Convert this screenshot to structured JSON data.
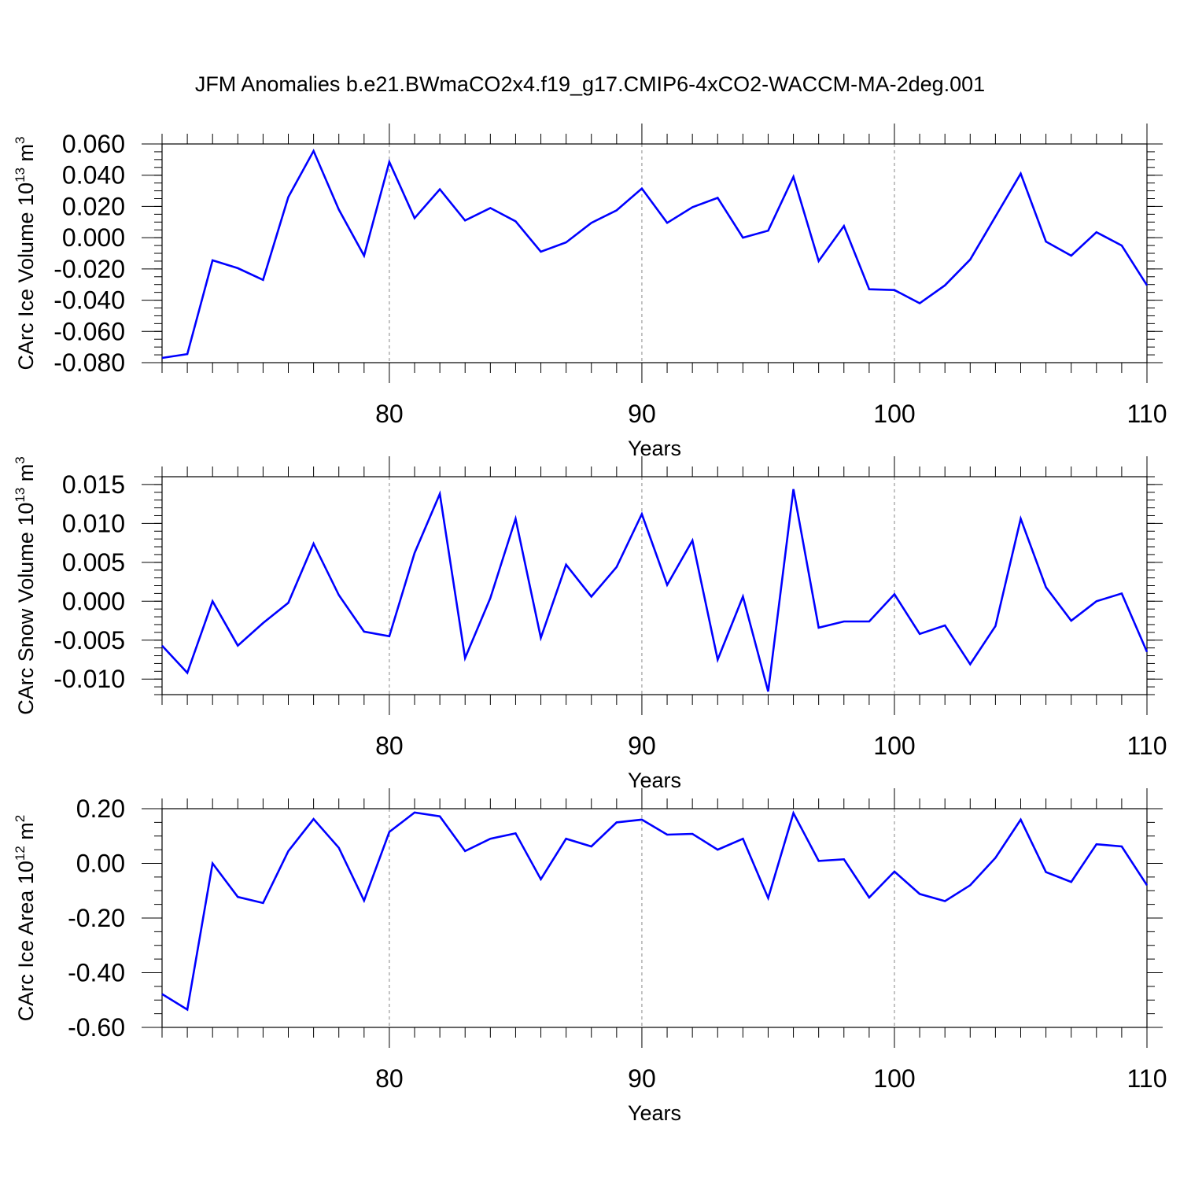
{
  "title": "JFM Anomalies b.e21.BWmaCO2x4.f19_g17.CMIP6-4xCO2-WACCM-MA-2deg.001",
  "colors": {
    "series": "#0000ff",
    "axes": "#000000",
    "grid": "#888888"
  },
  "chart_data": [
    {
      "type": "line",
      "ylabel": "CArc Ice Volume 10",
      "ylabel_exp": "13",
      "ylabel_unit": " m",
      "ylabel_unit_exp": "3",
      "xlabel": "Years",
      "xlim": [
        71,
        110
      ],
      "ylim": [
        -0.08,
        0.06
      ],
      "xticks": [
        80,
        90,
        100,
        110
      ],
      "xtick_labels": [
        "80",
        "90",
        "100",
        "110"
      ],
      "yticks": [
        0.06,
        0.04,
        0.02,
        0.0,
        -0.02,
        -0.04,
        -0.06,
        -0.08
      ],
      "ytick_labels": [
        "0.060",
        "0.040",
        "0.020",
        "0.000",
        "-0.020",
        "-0.040",
        "-0.060",
        "-0.080"
      ],
      "y_minor_step": 0.005,
      "grid": "vertical dashed at major x ticks",
      "x": [
        71,
        72,
        73,
        74,
        75,
        76,
        77,
        78,
        79,
        80,
        81,
        82,
        83,
        84,
        85,
        86,
        87,
        88,
        89,
        90,
        91,
        92,
        93,
        94,
        95,
        96,
        97,
        98,
        99,
        100,
        101,
        102,
        103,
        104,
        105,
        106,
        107,
        108,
        109,
        110
      ],
      "values": [
        -0.077,
        -0.0745,
        -0.0145,
        -0.0195,
        -0.027,
        0.026,
        0.0555,
        0.018,
        -0.0115,
        0.0485,
        0.0125,
        0.031,
        0.011,
        0.019,
        0.0105,
        -0.009,
        -0.003,
        0.0095,
        0.0175,
        0.0315,
        0.0095,
        0.0195,
        0.0255,
        0.0,
        0.0045,
        0.039,
        -0.015,
        0.0075,
        -0.033,
        -0.0335,
        -0.042,
        -0.0305,
        -0.014,
        0.0135,
        0.041,
        -0.0025,
        -0.0115,
        0.0035,
        -0.005,
        -0.0305
      ]
    },
    {
      "type": "line",
      "ylabel": "CArc Snow Volume 10",
      "ylabel_exp": "13",
      "ylabel_unit": " m",
      "ylabel_unit_exp": "3",
      "xlabel": "Years",
      "xlim": [
        71,
        110
      ],
      "ylim": [
        -0.012,
        0.016
      ],
      "xticks": [
        80,
        90,
        100,
        110
      ],
      "xtick_labels": [
        "80",
        "90",
        "100",
        "110"
      ],
      "yticks": [
        0.015,
        0.01,
        0.005,
        0.0,
        -0.005,
        -0.01
      ],
      "ytick_labels": [
        "0.015",
        "0.010",
        "0.005",
        "0.000",
        "-0.005",
        "-0.010"
      ],
      "y_minor_step": 0.001,
      "grid": "vertical dashed at major x ticks",
      "x": [
        71,
        72,
        73,
        74,
        75,
        76,
        77,
        78,
        79,
        80,
        81,
        82,
        83,
        84,
        85,
        86,
        87,
        88,
        89,
        90,
        91,
        92,
        93,
        94,
        95,
        96,
        97,
        98,
        99,
        100,
        101,
        102,
        103,
        104,
        105,
        106,
        107,
        108,
        109,
        110
      ],
      "values": [
        -0.0057,
        -0.0092,
        0.0,
        -0.0057,
        -0.0028,
        -0.0002,
        0.0074,
        0.0008,
        -0.0039,
        -0.0045,
        0.0062,
        0.0138,
        -0.0073,
        0.0004,
        0.0106,
        -0.0047,
        0.0047,
        0.0006,
        0.0044,
        0.0112,
        0.0021,
        0.0078,
        -0.0075,
        0.0006,
        -0.0116,
        0.0144,
        -0.0034,
        -0.0026,
        -0.0026,
        0.0009,
        -0.0042,
        -0.0031,
        -0.0081,
        -0.0032,
        0.0106,
        0.0018,
        -0.0025,
        0.0,
        0.001,
        -0.0065
      ]
    },
    {
      "type": "line",
      "ylabel": "CArc Ice Area 10",
      "ylabel_exp": "12",
      "ylabel_unit": " m",
      "ylabel_unit_exp": "2",
      "xlabel": "Years",
      "xlim": [
        71,
        110
      ],
      "ylim": [
        -0.6,
        0.2
      ],
      "xticks": [
        80,
        90,
        100,
        110
      ],
      "xtick_labels": [
        "80",
        "90",
        "100",
        "110"
      ],
      "yticks": [
        0.2,
        0.0,
        -0.2,
        -0.4,
        -0.6
      ],
      "ytick_labels": [
        "0.20",
        "0.00",
        "-0.20",
        "-0.40",
        "-0.60"
      ],
      "y_minor_step": 0.05,
      "grid": "vertical dashed at major x ticks",
      "x": [
        71,
        72,
        73,
        74,
        75,
        76,
        77,
        78,
        79,
        80,
        81,
        82,
        83,
        84,
        85,
        86,
        87,
        88,
        89,
        90,
        91,
        92,
        93,
        94,
        95,
        96,
        97,
        98,
        99,
        100,
        101,
        102,
        103,
        104,
        105,
        106,
        107,
        108,
        109,
        110
      ],
      "values": [
        -0.478,
        -0.535,
        0.0,
        -0.123,
        -0.145,
        0.045,
        0.162,
        0.057,
        -0.136,
        0.115,
        0.186,
        0.172,
        0.045,
        0.09,
        0.11,
        -0.058,
        0.09,
        0.062,
        0.15,
        0.16,
        0.105,
        0.108,
        0.05,
        0.09,
        -0.127,
        0.184,
        0.009,
        0.015,
        -0.125,
        -0.03,
        -0.112,
        -0.138,
        -0.08,
        0.02,
        0.16,
        -0.032,
        -0.068,
        0.07,
        0.062,
        -0.08
      ]
    }
  ]
}
